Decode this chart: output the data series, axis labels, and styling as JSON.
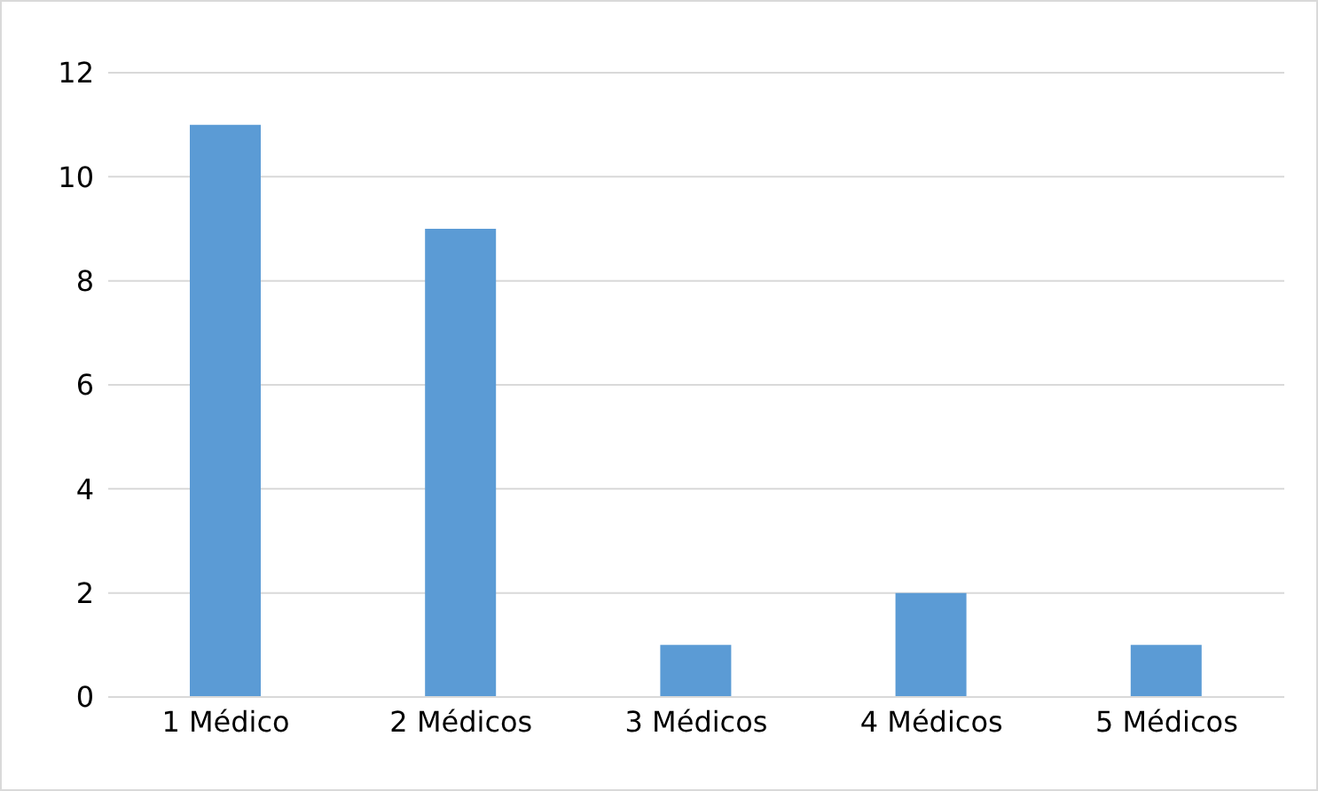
{
  "chart_data": {
    "type": "bar",
    "categories": [
      "1 Médico",
      "2 Médicos",
      "3 Médicos",
      "4 Médicos",
      "5 Médicos"
    ],
    "values": [
      11,
      9,
      1,
      2,
      1
    ],
    "color": "#5b9bd5",
    "ylim": [
      0,
      12
    ],
    "yticks": [
      0,
      2,
      4,
      6,
      8,
      10,
      12
    ],
    "grid": "y"
  }
}
